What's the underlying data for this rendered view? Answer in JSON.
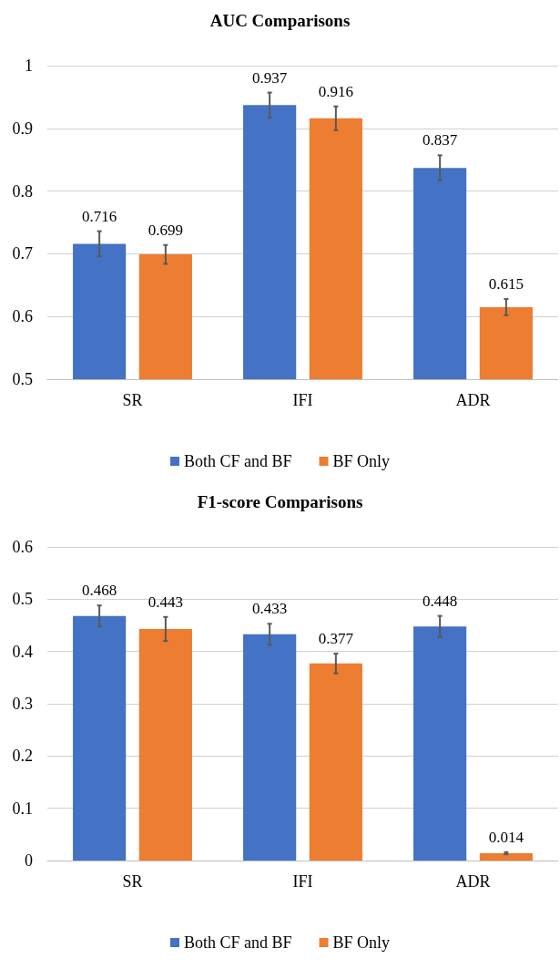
{
  "chart_data": [
    {
      "type": "bar",
      "title": "AUC Comparisons",
      "categories": [
        "SR",
        "IFI",
        "ADR"
      ],
      "series": [
        {
          "name": "Both CF and BF",
          "color": "#4472c4",
          "values": [
            0.716,
            0.937,
            0.837
          ],
          "errors": [
            0.02,
            0.02,
            0.02
          ]
        },
        {
          "name": "BF Only",
          "color": "#ed7d31",
          "values": [
            0.699,
            0.916,
            0.615
          ],
          "errors": [
            0.015,
            0.019,
            0.013
          ]
        }
      ],
      "ylim": [
        0.5,
        1
      ],
      "yticks": [
        0.5,
        0.6,
        0.7,
        0.8,
        0.9,
        1
      ],
      "grid": "y",
      "legend": "bottom",
      "data_labels": true
    },
    {
      "type": "bar",
      "title": "F1-score Comparisons",
      "categories": [
        "SR",
        "IFI",
        "ADR"
      ],
      "series": [
        {
          "name": "Both CF and BF",
          "color": "#4472c4",
          "values": [
            0.468,
            0.433,
            0.448
          ],
          "errors": [
            0.02,
            0.02,
            0.02
          ]
        },
        {
          "name": "BF Only",
          "color": "#ed7d31",
          "values": [
            0.443,
            0.377,
            0.014
          ],
          "errors": [
            0.023,
            0.019,
            0.002
          ]
        }
      ],
      "ylim": [
        0,
        0.6
      ],
      "yticks": [
        0,
        0.1,
        0.2,
        0.3,
        0.4,
        0.5,
        0.6
      ],
      "grid": "y",
      "legend": "bottom",
      "data_labels": true
    }
  ]
}
